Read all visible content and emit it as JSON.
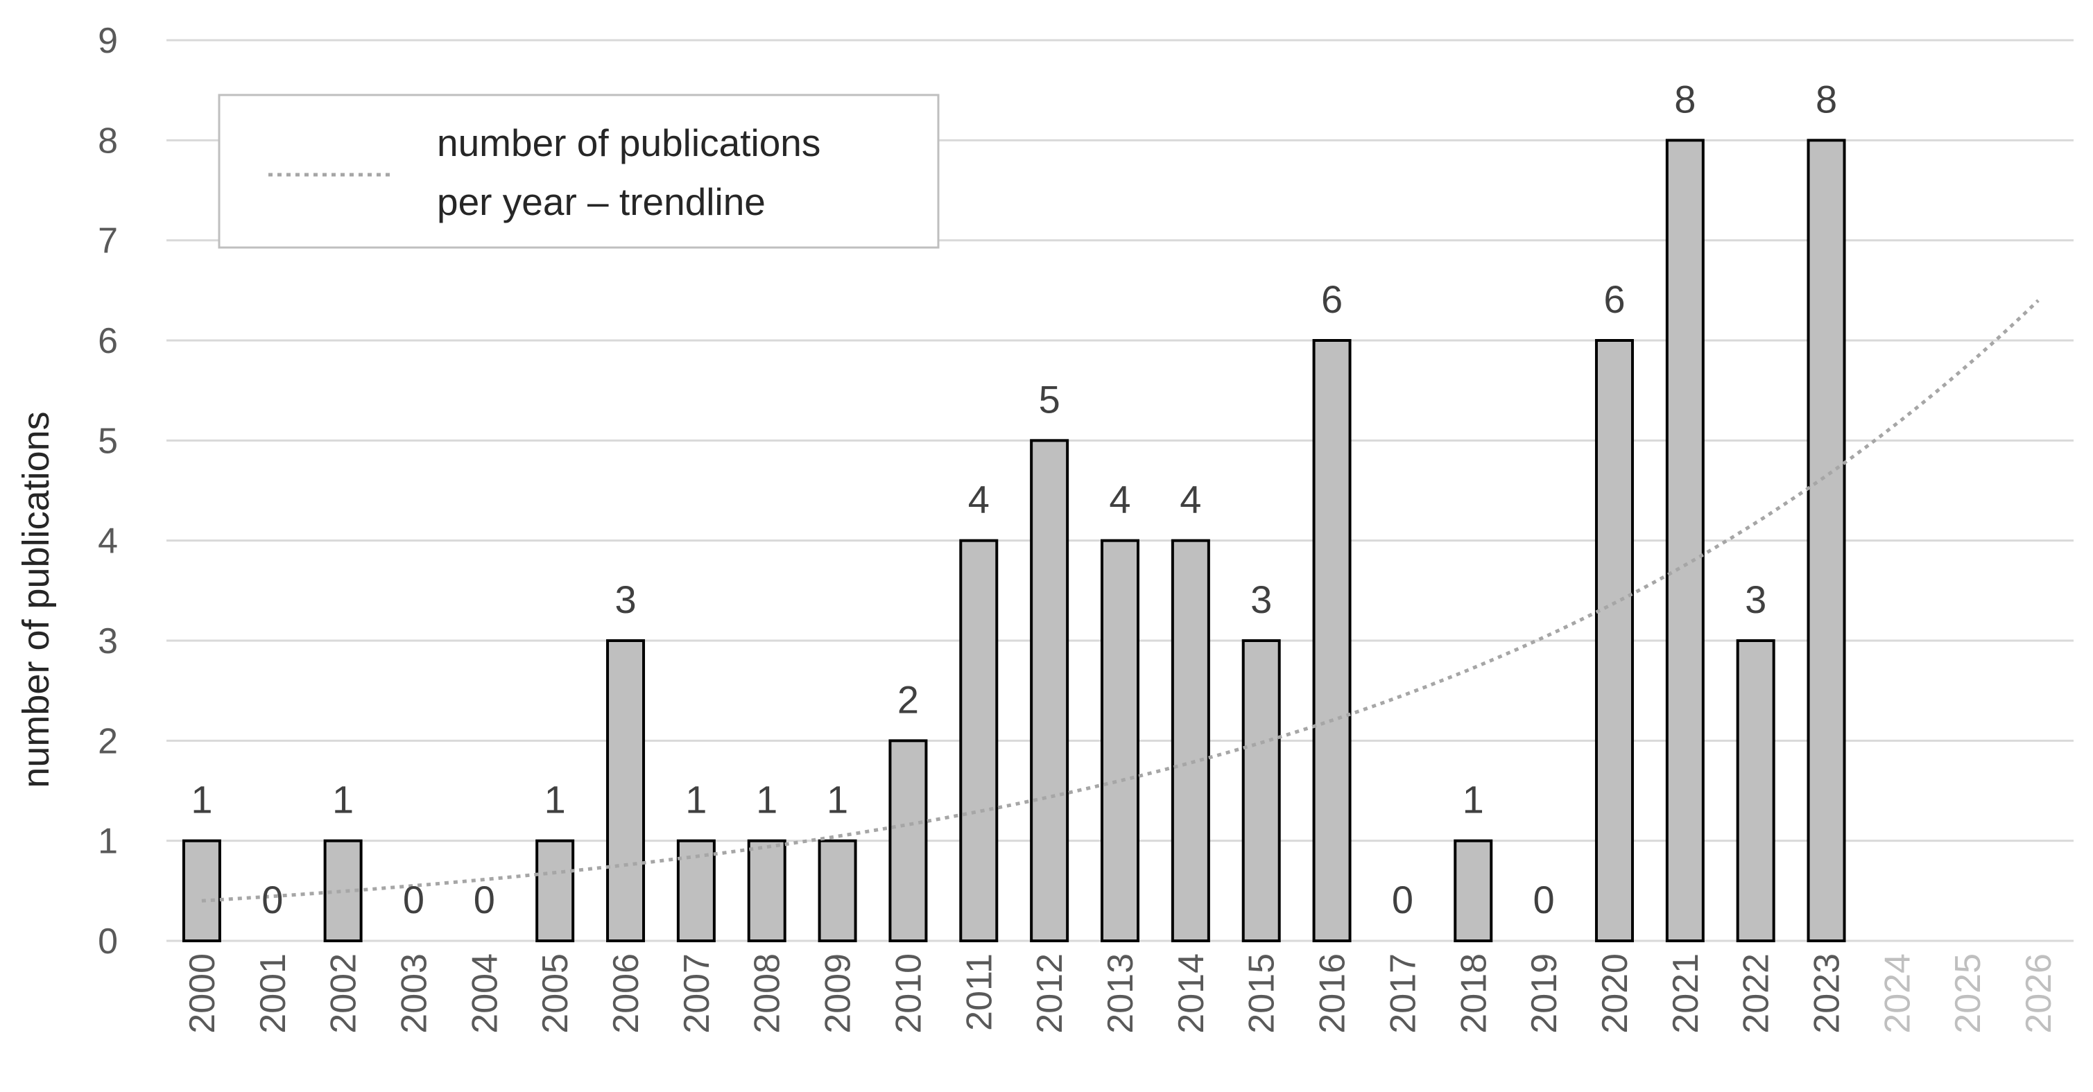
{
  "chart_data": {
    "type": "bar",
    "categories": [
      "2000",
      "2001",
      "2002",
      "2003",
      "2004",
      "2005",
      "2006",
      "2007",
      "2008",
      "2009",
      "2010",
      "2011",
      "2012",
      "2013",
      "2014",
      "2015",
      "2016",
      "2017",
      "2018",
      "2019",
      "2020",
      "2021",
      "2022",
      "2023",
      "2024",
      "2025",
      "2026"
    ],
    "values": [
      1,
      0,
      1,
      0,
      0,
      1,
      3,
      1,
      1,
      1,
      2,
      4,
      5,
      4,
      4,
      3,
      6,
      0,
      1,
      0,
      6,
      8,
      3,
      8,
      null,
      null,
      null
    ],
    "future_categories": [
      "2024",
      "2025",
      "2026"
    ],
    "ylabel": "number of publications",
    "xlabel": "",
    "ylim": [
      0,
      9
    ],
    "yticks": [
      0,
      1,
      2,
      3,
      4,
      5,
      6,
      7,
      8,
      9
    ],
    "grid": true,
    "trendline": {
      "type": "exponential",
      "name": "number of publications per year – trendline",
      "name_lines": [
        "number of publications",
        "per year – trendline"
      ],
      "start": {
        "x": "2000",
        "y": 0.4
      },
      "end": {
        "x": "2026",
        "y": 6.4
      }
    },
    "legend": {
      "position": "top-left"
    },
    "colors": {
      "bar_fill": "#bfbfbf",
      "bar_stroke": "#000000",
      "grid": "#d9d9d9",
      "trendline": "#a6a6a6",
      "legend_border": "#bfbfbf"
    }
  }
}
